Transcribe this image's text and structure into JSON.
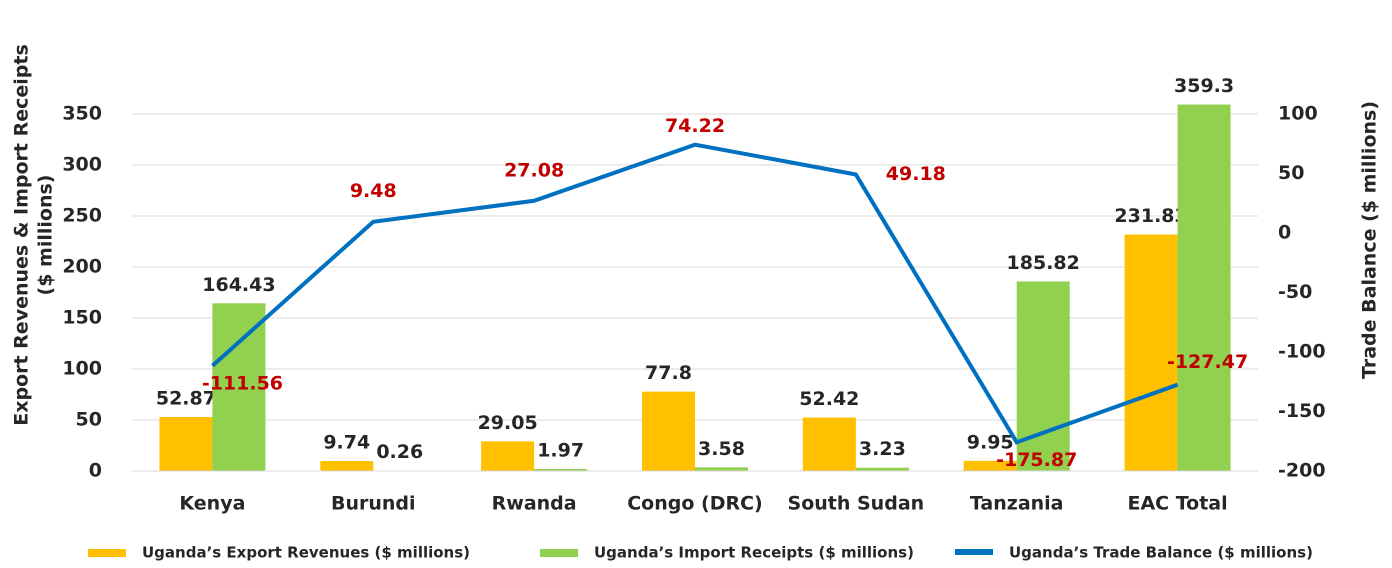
{
  "chart_data": {
    "type": "bar_line",
    "categories": [
      "Kenya",
      "Burundi",
      "Rwanda",
      "Congo (DRC)",
      "South Sudan",
      "Tanzania",
      "EAC Total"
    ],
    "series": [
      {
        "name": "Uganda’s Export Revenues ($ millions)",
        "color": "#FFC000",
        "type": "bar",
        "values": [
          52.87,
          9.74,
          29.05,
          77.8,
          52.42,
          9.95,
          231.83
        ]
      },
      {
        "name": "Uganda’s Import Receipts ($ millions)",
        "color": "#92D050",
        "type": "bar",
        "values": [
          164.43,
          0.26,
          1.97,
          3.58,
          3.23,
          185.82,
          359.3
        ]
      },
      {
        "name": "Uganda’s Trade Balance ($ millions)",
        "color": "#0070C0",
        "type": "line",
        "axis": "y2",
        "label_color": "#C00000",
        "values": [
          -111.56,
          9.48,
          27.08,
          74.22,
          49.18,
          -175.87,
          -127.47
        ]
      }
    ],
    "ylabel": [
      "Export Revenues & Import Receipts",
      "($ millions)"
    ],
    "y2label": "Trade Balance ($ millions)",
    "ylim": [
      0,
      350
    ],
    "yticks": [
      0,
      50,
      100,
      150,
      200,
      250,
      300,
      350
    ],
    "y2lim": [
      -200,
      100
    ],
    "y2ticks": [
      -200,
      -150,
      -100,
      -50,
      0,
      50,
      100
    ],
    "grid": true,
    "legend": "bottom"
  }
}
